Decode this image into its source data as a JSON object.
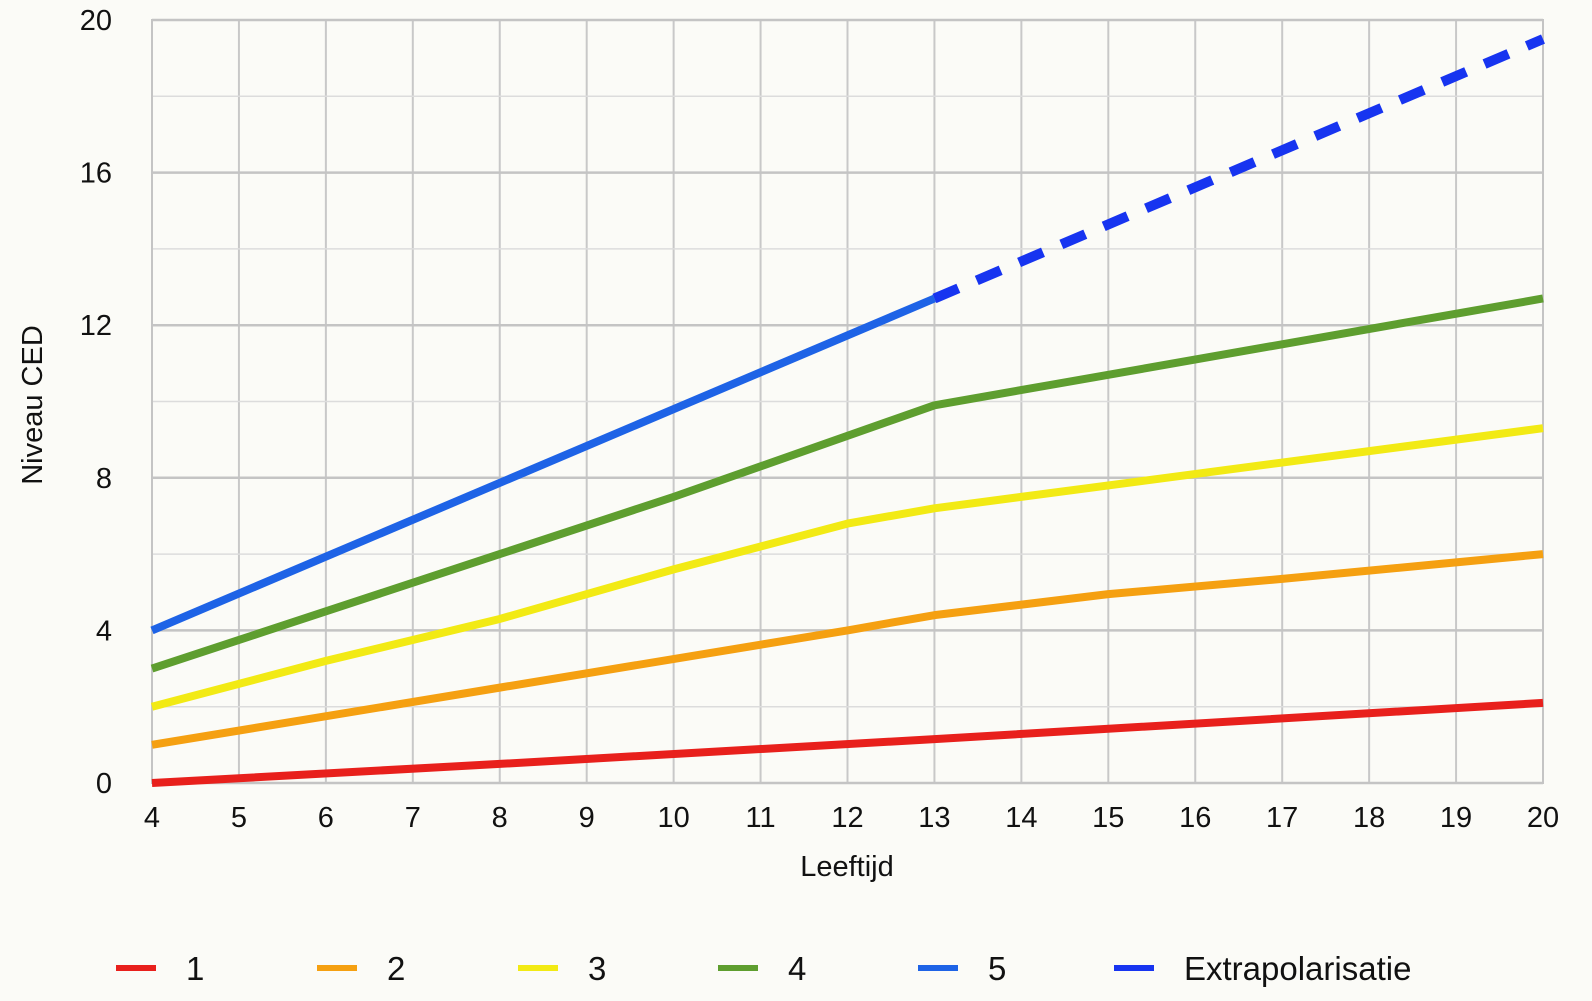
{
  "chart_data": {
    "type": "line",
    "title": "",
    "xlabel": "Leeftijd",
    "ylabel": "Niveau CED",
    "xlim": [
      4,
      20
    ],
    "ylim": [
      0,
      20
    ],
    "x_ticks": [
      4,
      5,
      6,
      7,
      8,
      9,
      10,
      11,
      12,
      13,
      14,
      15,
      16,
      17,
      18,
      19,
      20
    ],
    "y_ticks": [
      0,
      4,
      8,
      12,
      16,
      20
    ],
    "grid": true,
    "legend_position": "bottom",
    "series": [
      {
        "name": "1",
        "color": "#e8201c",
        "style": "solid",
        "x": [
          4,
          8,
          13,
          20
        ],
        "y": [
          0,
          0.5,
          1.15,
          2.1
        ]
      },
      {
        "name": "2",
        "color": "#f5a011",
        "style": "solid",
        "x": [
          4,
          8,
          12,
          13,
          15,
          17,
          20
        ],
        "y": [
          1,
          2.5,
          4,
          4.4,
          4.95,
          5.35,
          6
        ]
      },
      {
        "name": "3",
        "color": "#f2ea14",
        "style": "solid",
        "x": [
          4,
          6,
          8,
          10,
          12,
          13,
          15,
          17,
          20
        ],
        "y": [
          2,
          3.2,
          4.3,
          5.6,
          6.8,
          7.2,
          7.8,
          8.4,
          9.3
        ]
      },
      {
        "name": "4",
        "color": "#5e9e2f",
        "style": "solid",
        "x": [
          4,
          6,
          8,
          10,
          13,
          15,
          17,
          20
        ],
        "y": [
          3,
          4.5,
          6,
          7.5,
          9.9,
          10.7,
          11.5,
          12.7
        ]
      },
      {
        "name": "5",
        "color": "#1e63e6",
        "style": "solid",
        "x": [
          4,
          13
        ],
        "y": [
          4,
          12.7
        ]
      },
      {
        "name": "Extrapolarisatie",
        "color": "#1734f0",
        "style": "dashed",
        "x": [
          13,
          20
        ],
        "y": [
          12.7,
          19.5
        ]
      }
    ]
  }
}
